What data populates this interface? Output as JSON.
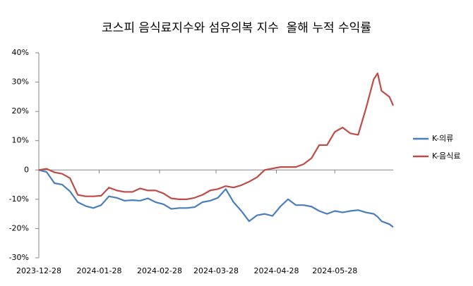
{
  "chart_data": {
    "type": "line",
    "title": "코스피 음식료지수와 섬유의복 지수  올해 누적 수익률",
    "x": [
      "2023-12-28",
      "2024-01-01",
      "2024-01-05",
      "2024-01-09",
      "2024-01-13",
      "2024-01-17",
      "2024-01-21",
      "2024-01-25",
      "2024-01-29",
      "2024-02-02",
      "2024-02-06",
      "2024-02-10",
      "2024-02-14",
      "2024-02-18",
      "2024-02-22",
      "2024-02-26",
      "2024-03-01",
      "2024-03-05",
      "2024-03-09",
      "2024-03-13",
      "2024-03-17",
      "2024-03-21",
      "2024-03-25",
      "2024-03-29",
      "2024-04-02",
      "2024-04-06",
      "2024-04-10",
      "2024-04-14",
      "2024-04-18",
      "2024-04-22",
      "2024-04-26",
      "2024-04-30",
      "2024-05-04",
      "2024-05-08",
      "2024-05-12",
      "2024-05-16",
      "2024-05-20",
      "2024-05-24",
      "2024-05-28",
      "2024-06-01",
      "2024-06-05",
      "2024-06-09",
      "2024-06-13",
      "2024-06-17",
      "2024-06-19",
      "2024-06-21",
      "2024-06-25",
      "2024-06-27"
    ],
    "series": [
      {
        "name": "K-의류",
        "color": "#4a7ebb",
        "values": [
          0,
          -0.7,
          -4.5,
          -5,
          -7.3,
          -11,
          -12.3,
          -13,
          -12,
          -9,
          -9.5,
          -10.5,
          -10.3,
          -10.5,
          -9.7,
          -11,
          -11.7,
          -13.3,
          -13,
          -13,
          -12.7,
          -11,
          -10.5,
          -9.5,
          -6.5,
          -11,
          -14,
          -17.5,
          -15.5,
          -15,
          -15.7,
          -12.5,
          -10,
          -12,
          -12,
          -12.5,
          -14,
          -15,
          -14,
          -14.5,
          -14,
          -13.7,
          -14.5,
          -15,
          -16,
          -17.5,
          -18.5,
          -19.5
        ]
      },
      {
        "name": "K-음식료",
        "color": "#be4b48",
        "values": [
          0,
          0.4,
          -0.8,
          -1.3,
          -2.8,
          -8.5,
          -9,
          -9,
          -8.8,
          -6,
          -7,
          -7.5,
          -7.5,
          -6.3,
          -7,
          -7,
          -8,
          -9.7,
          -10,
          -10,
          -9.5,
          -8.5,
          -7,
          -6.5,
          -5.5,
          -6,
          -5.2,
          -4,
          -2.5,
          0,
          0.5,
          1,
          1,
          1,
          2,
          4,
          8.5,
          8.5,
          13,
          14.5,
          12.5,
          12,
          21,
          31,
          33,
          27,
          25,
          22
        ]
      }
    ],
    "xlim": [
      "2023-12-28",
      "2024-06-27"
    ],
    "xticks": [
      "2023-12-28",
      "2024-01-28",
      "2024-02-28",
      "2024-03-28",
      "2024-04-28",
      "2024-05-28"
    ],
    "ylim": [
      -30,
      40
    ],
    "yticks": [
      {
        "value": -30,
        "label": "-30%"
      },
      {
        "value": -20,
        "label": "-20%"
      },
      {
        "value": -10,
        "label": "-10%"
      },
      0,
      {
        "value": 10,
        "label": "10%"
      },
      {
        "value": 20,
        "label": "20%"
      },
      {
        "value": 30,
        "label": "30%"
      },
      {
        "value": 40,
        "label": "40%"
      }
    ],
    "grid": false,
    "legend": "right"
  }
}
